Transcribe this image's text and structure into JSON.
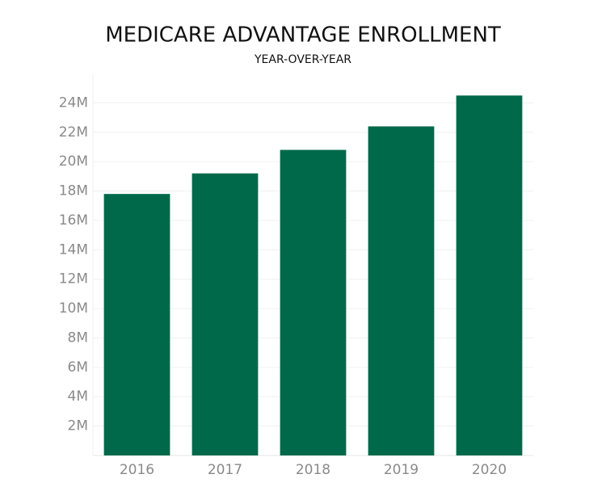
{
  "chart_data": {
    "type": "bar",
    "title": "MEDICARE ADVANTAGE ENROLLMENT",
    "subtitle": "YEAR-OVER-YEAR",
    "categories": [
      "2016",
      "2017",
      "2018",
      "2019",
      "2020"
    ],
    "values": [
      17800000,
      19200000,
      20800000,
      22400000,
      24500000
    ],
    "color": "#00694a",
    "ylim": [
      0,
      26000000
    ],
    "yticks": [
      {
        "value": 2000000,
        "label": "2M"
      },
      {
        "value": 4000000,
        "label": "4M"
      },
      {
        "value": 6000000,
        "label": "6M"
      },
      {
        "value": 8000000,
        "label": "8M"
      },
      {
        "value": 10000000,
        "label": "10M"
      },
      {
        "value": 12000000,
        "label": "12M"
      },
      {
        "value": 14000000,
        "label": "14M"
      },
      {
        "value": 16000000,
        "label": "16M"
      },
      {
        "value": 18000000,
        "label": "18M"
      },
      {
        "value": 20000000,
        "label": "20M"
      },
      {
        "value": 22000000,
        "label": "22M"
      },
      {
        "value": 24000000,
        "label": "24M"
      }
    ],
    "grid": true
  }
}
